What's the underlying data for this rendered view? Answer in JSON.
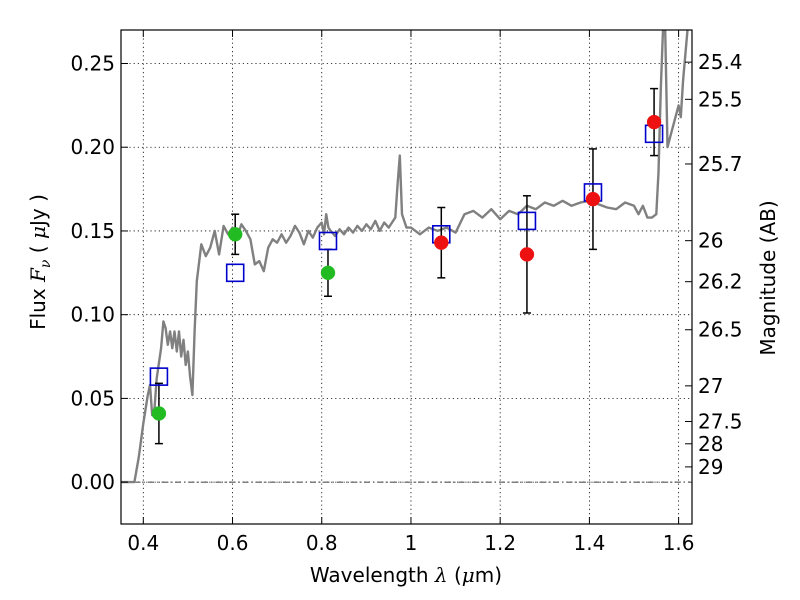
{
  "chart_data": {
    "type": "scatter",
    "xlabel": {
      "prefix": "Wavelength  ",
      "symbol": "λ",
      "units_open": " (",
      "units_mu": "μ",
      "units_rest": "m)"
    },
    "ylabel": {
      "prefix": "Flux  ",
      "symbol": "F",
      "subscript": "ν",
      "units_open": "  ( ",
      "units_mu": "μ",
      "units_rest": "Jy )"
    },
    "ylabel_right": "Magnitude (AB)",
    "xlim": [
      0.35,
      1.63
    ],
    "ylim": [
      -0.025,
      0.27
    ],
    "xticks": [
      {
        "value": 0.4,
        "label": "0.4"
      },
      {
        "value": 0.6,
        "label": "0.6"
      },
      {
        "value": 0.8,
        "label": "0.8"
      },
      {
        "value": 1.0,
        "label": "1"
      },
      {
        "value": 1.2,
        "label": "1.2"
      },
      {
        "value": 1.4,
        "label": "1.4"
      },
      {
        "value": 1.6,
        "label": "1.6"
      }
    ],
    "yticks": [
      {
        "value": 0.0,
        "label": "0.00"
      },
      {
        "value": 0.05,
        "label": "0.05"
      },
      {
        "value": 0.1,
        "label": "0.10"
      },
      {
        "value": 0.15,
        "label": "0.15"
      },
      {
        "value": 0.2,
        "label": "0.20"
      },
      {
        "value": 0.25,
        "label": "0.25"
      }
    ],
    "right_ticks": [
      {
        "flux": 0.2508,
        "label": "25.4"
      },
      {
        "flux": 0.2286,
        "label": "25.5"
      },
      {
        "flux": 0.19,
        "label": "25.7"
      },
      {
        "flux": 0.1442,
        "label": "26"
      },
      {
        "flux": 0.1197,
        "label": "26.2"
      },
      {
        "flux": 0.091,
        "label": "26.5"
      },
      {
        "flux": 0.0575,
        "label": "27"
      },
      {
        "flux": 0.0362,
        "label": "27.5"
      },
      {
        "flux": 0.0229,
        "label": "28"
      },
      {
        "flux": 0.0091,
        "label": "29"
      }
    ],
    "grid": true,
    "zero_line": 0.0,
    "colors": {
      "model": "#808080",
      "observed_optical": "#22bb22",
      "observed_nir": "#ee1111",
      "model_photometry": "#0000cc",
      "errorbar": "#000000"
    },
    "model_spectrum": [
      [
        0.35,
        0.0
      ],
      [
        0.37,
        0.0
      ],
      [
        0.38,
        0.0
      ],
      [
        0.39,
        0.015
      ],
      [
        0.4,
        0.035
      ],
      [
        0.41,
        0.052
      ],
      [
        0.415,
        0.058
      ],
      [
        0.42,
        0.04
      ],
      [
        0.425,
        0.044
      ],
      [
        0.43,
        0.062
      ],
      [
        0.44,
        0.08
      ],
      [
        0.445,
        0.096
      ],
      [
        0.45,
        0.092
      ],
      [
        0.455,
        0.082
      ],
      [
        0.46,
        0.09
      ],
      [
        0.465,
        0.08
      ],
      [
        0.47,
        0.09
      ],
      [
        0.475,
        0.078
      ],
      [
        0.48,
        0.09
      ],
      [
        0.485,
        0.075
      ],
      [
        0.49,
        0.085
      ],
      [
        0.495,
        0.07
      ],
      [
        0.5,
        0.078
      ],
      [
        0.505,
        0.063
      ],
      [
        0.51,
        0.052
      ],
      [
        0.515,
        0.09
      ],
      [
        0.52,
        0.12
      ],
      [
        0.53,
        0.142
      ],
      [
        0.54,
        0.135
      ],
      [
        0.55,
        0.14
      ],
      [
        0.56,
        0.15
      ],
      [
        0.57,
        0.136
      ],
      [
        0.58,
        0.153
      ],
      [
        0.59,
        0.148
      ],
      [
        0.6,
        0.152
      ],
      [
        0.61,
        0.146
      ],
      [
        0.62,
        0.154
      ],
      [
        0.63,
        0.15
      ],
      [
        0.64,
        0.145
      ],
      [
        0.65,
        0.13
      ],
      [
        0.66,
        0.132
      ],
      [
        0.67,
        0.126
      ],
      [
        0.68,
        0.14
      ],
      [
        0.69,
        0.145
      ],
      [
        0.7,
        0.143
      ],
      [
        0.71,
        0.148
      ],
      [
        0.72,
        0.143
      ],
      [
        0.73,
        0.147
      ],
      [
        0.74,
        0.153
      ],
      [
        0.75,
        0.149
      ],
      [
        0.76,
        0.142
      ],
      [
        0.77,
        0.15
      ],
      [
        0.78,
        0.146
      ],
      [
        0.79,
        0.152
      ],
      [
        0.8,
        0.155
      ],
      [
        0.805,
        0.148
      ],
      [
        0.81,
        0.16
      ],
      [
        0.815,
        0.152
      ],
      [
        0.82,
        0.15
      ],
      [
        0.83,
        0.147
      ],
      [
        0.84,
        0.151
      ],
      [
        0.85,
        0.148
      ],
      [
        0.86,
        0.152
      ],
      [
        0.87,
        0.149
      ],
      [
        0.88,
        0.153
      ],
      [
        0.89,
        0.15
      ],
      [
        0.9,
        0.154
      ],
      [
        0.91,
        0.151
      ],
      [
        0.92,
        0.156
      ],
      [
        0.93,
        0.15
      ],
      [
        0.94,
        0.155
      ],
      [
        0.95,
        0.152
      ],
      [
        0.96,
        0.156
      ],
      [
        0.965,
        0.158
      ],
      [
        0.97,
        0.178
      ],
      [
        0.975,
        0.195
      ],
      [
        0.98,
        0.16
      ],
      [
        0.99,
        0.152
      ],
      [
        1.0,
        0.152
      ],
      [
        1.02,
        0.148
      ],
      [
        1.04,
        0.152
      ],
      [
        1.06,
        0.15
      ],
      [
        1.08,
        0.152
      ],
      [
        1.1,
        0.149
      ],
      [
        1.12,
        0.16
      ],
      [
        1.14,
        0.162
      ],
      [
        1.16,
        0.158
      ],
      [
        1.18,
        0.163
      ],
      [
        1.2,
        0.157
      ],
      [
        1.22,
        0.162
      ],
      [
        1.24,
        0.16
      ],
      [
        1.26,
        0.165
      ],
      [
        1.28,
        0.163
      ],
      [
        1.3,
        0.167
      ],
      [
        1.32,
        0.165
      ],
      [
        1.34,
        0.168
      ],
      [
        1.36,
        0.165
      ],
      [
        1.38,
        0.167
      ],
      [
        1.4,
        0.168
      ],
      [
        1.42,
        0.166
      ],
      [
        1.44,
        0.164
      ],
      [
        1.46,
        0.163
      ],
      [
        1.48,
        0.167
      ],
      [
        1.5,
        0.165
      ],
      [
        1.51,
        0.16
      ],
      [
        1.52,
        0.165
      ],
      [
        1.53,
        0.158
      ],
      [
        1.54,
        0.158
      ],
      [
        1.55,
        0.16
      ],
      [
        1.555,
        0.185
      ],
      [
        1.56,
        0.235
      ],
      [
        1.565,
        0.27
      ],
      [
        1.57,
        0.27
      ],
      [
        1.575,
        0.2
      ],
      [
        1.585,
        0.21
      ],
      [
        1.595,
        0.22
      ],
      [
        1.6,
        0.225
      ],
      [
        1.605,
        0.218
      ],
      [
        1.61,
        0.24
      ],
      [
        1.615,
        0.255
      ],
      [
        1.62,
        0.27
      ]
    ],
    "observed_points": [
      {
        "x": 0.435,
        "y": 0.041,
        "err": 0.018,
        "group": "optical"
      },
      {
        "x": 0.606,
        "y": 0.148,
        "err": 0.012,
        "group": "optical"
      },
      {
        "x": 0.814,
        "y": 0.125,
        "err": 0.014,
        "group": "optical"
      },
      {
        "x": 1.068,
        "y": 0.143,
        "err": 0.021,
        "group": "nir"
      },
      {
        "x": 1.26,
        "y": 0.136,
        "err": 0.035,
        "group": "nir"
      },
      {
        "x": 1.408,
        "y": 0.169,
        "err": 0.03,
        "group": "nir"
      },
      {
        "x": 1.545,
        "y": 0.215,
        "err": 0.02,
        "group": "nir"
      }
    ],
    "model_photometry": [
      {
        "x": 0.435,
        "y": 0.063
      },
      {
        "x": 0.606,
        "y": 0.125
      },
      {
        "x": 0.814,
        "y": 0.144
      },
      {
        "x": 1.068,
        "y": 0.148
      },
      {
        "x": 1.26,
        "y": 0.156
      },
      {
        "x": 1.408,
        "y": 0.173
      },
      {
        "x": 1.545,
        "y": 0.208
      }
    ]
  }
}
